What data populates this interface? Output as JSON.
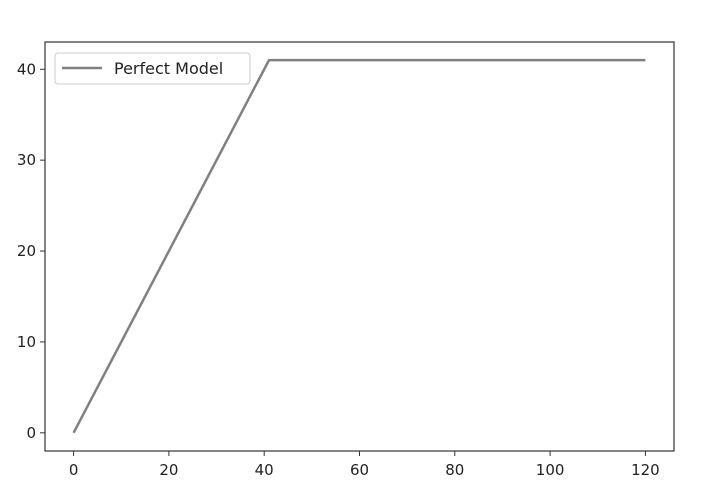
{
  "chart_data": {
    "type": "line",
    "title": "",
    "xlabel": "",
    "ylabel": "",
    "xlim": [
      -6,
      126
    ],
    "ylim": [
      -2,
      43
    ],
    "xticks": [
      0,
      20,
      40,
      60,
      80,
      100,
      120
    ],
    "yticks": [
      0,
      10,
      20,
      30,
      40
    ],
    "grid": false,
    "legend": {
      "placement": "upper-left"
    },
    "series": [
      {
        "name": "Perfect Model",
        "color": "#808080",
        "x": [
          0,
          41,
          120
        ],
        "y": [
          0,
          41,
          41
        ]
      }
    ]
  }
}
